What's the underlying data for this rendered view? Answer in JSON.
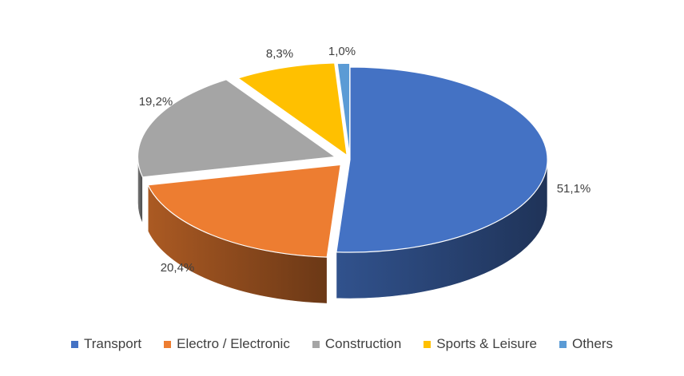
{
  "chart_data": {
    "type": "pie",
    "style": "3d-exploded-tilted",
    "legend_position": "bottom",
    "categories": [
      "Transport",
      "Electro / Electronic",
      "Construction",
      "Sports & Leisure",
      "Others"
    ],
    "values": [
      51.1,
      20.4,
      19.2,
      8.3,
      1.0
    ],
    "data_labels": [
      "51,1%",
      "20,4%",
      "19,2%",
      "8,3%",
      "1,0%"
    ],
    "colors": [
      "#4472C4",
      "#ED7D31",
      "#A5A5A5",
      "#FFC000",
      "#5B9BD5"
    ],
    "start_angle": "12 o'clock",
    "direction": "clockwise"
  }
}
